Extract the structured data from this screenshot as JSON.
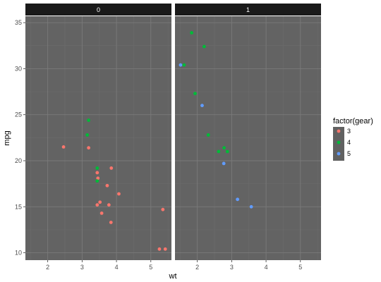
{
  "chart_data": {
    "type": "scatter",
    "xlabel": "wt",
    "ylabel": "mpg",
    "xlim": [
      1.35,
      5.6
    ],
    "ylim": [
      9.2,
      35.7
    ],
    "x_ticks": [
      2,
      3,
      4,
      5
    ],
    "y_ticks": [
      10,
      15,
      20,
      25,
      30,
      35
    ],
    "grid": true,
    "legend": {
      "title": "factor(gear)",
      "placement": "right",
      "entries": [
        {
          "label": "3",
          "color": "#F8766D"
        },
        {
          "label": "4",
          "color": "#00BA38"
        },
        {
          "label": "5",
          "color": "#619CFF"
        }
      ]
    },
    "facets": [
      {
        "label": "0",
        "points": [
          {
            "x": 2.46,
            "y": 21.5,
            "gear": "3"
          },
          {
            "x": 3.19,
            "y": 21.4,
            "gear": "3"
          },
          {
            "x": 3.44,
            "y": 18.7,
            "gear": "3"
          },
          {
            "x": 3.46,
            "y": 18.1,
            "gear": "3"
          },
          {
            "x": 3.57,
            "y": 14.3,
            "gear": "3"
          },
          {
            "x": 4.07,
            "y": 16.4,
            "gear": "3"
          },
          {
            "x": 3.73,
            "y": 17.3,
            "gear": "3"
          },
          {
            "x": 3.78,
            "y": 15.2,
            "gear": "3"
          },
          {
            "x": 5.25,
            "y": 10.4,
            "gear": "3"
          },
          {
            "x": 5.42,
            "y": 10.4,
            "gear": "3"
          },
          {
            "x": 5.35,
            "y": 14.7,
            "gear": "3"
          },
          {
            "x": 3.52,
            "y": 15.5,
            "gear": "3"
          },
          {
            "x": 3.44,
            "y": 15.2,
            "gear": "3"
          },
          {
            "x": 3.84,
            "y": 13.3,
            "gear": "3"
          },
          {
            "x": 3.85,
            "y": 19.2,
            "gear": "3"
          },
          {
            "x": 3.19,
            "y": 24.4,
            "gear": "4"
          },
          {
            "x": 3.15,
            "y": 22.8,
            "gear": "4"
          },
          {
            "x": 3.44,
            "y": 19.2,
            "gear": "4"
          },
          {
            "x": 3.44,
            "y": 17.8,
            "gear": "4"
          }
        ]
      },
      {
        "label": "1",
        "points": [
          {
            "x": 2.62,
            "y": 21.0,
            "gear": "4"
          },
          {
            "x": 2.875,
            "y": 21.0,
            "gear": "4"
          },
          {
            "x": 2.32,
            "y": 22.8,
            "gear": "4"
          },
          {
            "x": 2.2,
            "y": 32.4,
            "gear": "4"
          },
          {
            "x": 1.615,
            "y": 30.4,
            "gear": "4"
          },
          {
            "x": 1.835,
            "y": 33.9,
            "gear": "4"
          },
          {
            "x": 1.935,
            "y": 27.3,
            "gear": "4"
          },
          {
            "x": 2.78,
            "y": 21.4,
            "gear": "4"
          },
          {
            "x": 2.14,
            "y": 26.0,
            "gear": "5"
          },
          {
            "x": 1.513,
            "y": 30.4,
            "gear": "5"
          },
          {
            "x": 3.17,
            "y": 15.8,
            "gear": "5"
          },
          {
            "x": 2.77,
            "y": 19.7,
            "gear": "5"
          },
          {
            "x": 3.57,
            "y": 15.0,
            "gear": "5"
          }
        ]
      }
    ]
  }
}
